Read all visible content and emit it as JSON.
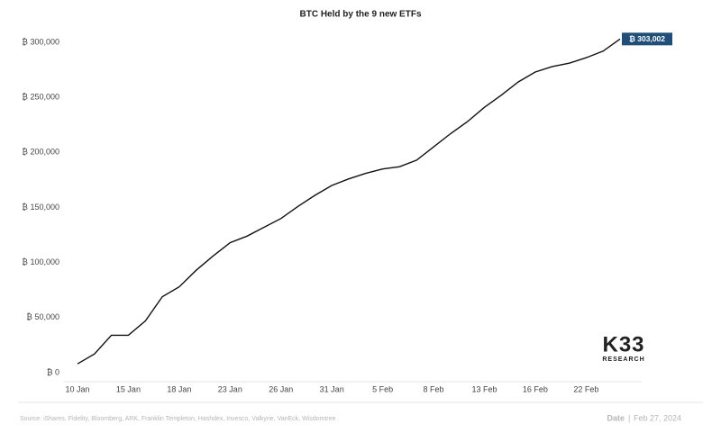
{
  "chart_data": {
    "type": "line",
    "title": "BTC Held by the 9 new ETFs",
    "categories": [
      "10 Jan",
      null,
      null,
      "15 Jan",
      null,
      null,
      "18 Jan",
      null,
      null,
      "23 Jan",
      null,
      null,
      "26 Jan",
      null,
      null,
      "31 Jan",
      null,
      null,
      "5 Feb",
      null,
      null,
      "8 Feb",
      null,
      null,
      "13 Feb",
      null,
      null,
      "16 Feb",
      null,
      null,
      "22 Feb",
      null,
      null
    ],
    "values": [
      8000,
      17000,
      34000,
      34000,
      47000,
      69000,
      78000,
      93000,
      106000,
      118000,
      124000,
      132000,
      140000,
      151000,
      161000,
      170000,
      176000,
      181000,
      185000,
      187000,
      193000,
      205000,
      217000,
      228000,
      241000,
      252000,
      264000,
      273000,
      278000,
      281000,
      286000,
      292000,
      303002
    ],
    "value_labels": [
      null,
      null,
      null,
      null,
      null,
      null,
      null,
      null,
      null,
      null,
      null,
      null,
      null,
      null,
      null,
      null,
      null,
      null,
      null,
      null,
      null,
      null,
      null,
      null,
      null,
      null,
      null,
      null,
      null,
      null,
      null,
      null,
      "₿ 303,002"
    ],
    "color": "#111111",
    "label_color": "#1f4e79",
    "ylim": [
      0,
      310000
    ],
    "yticks": [
      {
        "value": 0,
        "label": "₿ 0"
      },
      {
        "value": 50000,
        "label": "₿ 50,000"
      },
      {
        "value": 100000,
        "label": "₿ 100,000"
      },
      {
        "value": 150000,
        "label": "₿ 150,000"
      },
      {
        "value": 200000,
        "label": "₿ 200,000"
      },
      {
        "value": 250000,
        "label": "₿ 250,000"
      },
      {
        "value": 300000,
        "label": "₿ 300,000"
      }
    ],
    "grid": false,
    "source": "Source: iShares, Fidelity, Bloomberg, ARK, Franklin Templeton, Hashdex, Invesco, Valkyrie, VanEck, Wisdomtree",
    "date_label": "Date",
    "date": "Feb 27, 2024",
    "logo": "K33",
    "logo_sub": "RESEARCH"
  }
}
